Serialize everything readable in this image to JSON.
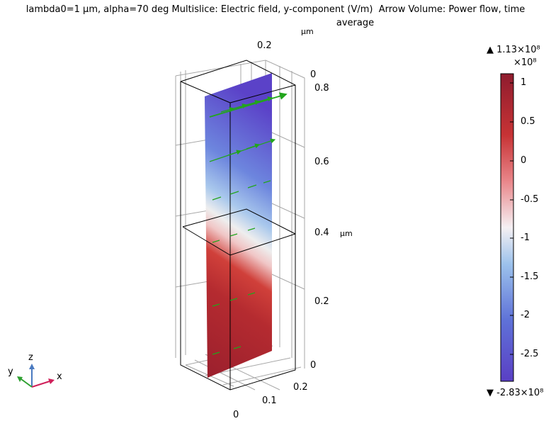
{
  "title": {
    "part1": "lambda0=1 µm, alpha=70 deg",
    "part2": "Multislice: Electric field, y-component (V/m)",
    "part3": "Arrow Volume: Power flow, time",
    "part3b": "average"
  },
  "axes": {
    "unit": "µm",
    "top_x_tick": "0.2",
    "top_x_zero": "0",
    "z_ticks": [
      "0.8",
      "0.6",
      "0.4",
      "0.2",
      "0"
    ],
    "base_ticks": [
      "0.2",
      "0.1",
      "0"
    ]
  },
  "colorbar": {
    "max_label": "▲ 1.13×10⁸",
    "multiplier": "×10⁸",
    "ticks": [
      "1",
      "0.5",
      "0",
      "-0.5",
      "-1",
      "-1.5",
      "-2",
      "-2.5"
    ],
    "min_label": "▼ -2.83×10⁸",
    "colors": [
      "#8f1c2e",
      "#d03a33",
      "#f2b8bd",
      "#f4f4f4",
      "#9cc2ec",
      "#5468d6",
      "#5a3fc4"
    ]
  },
  "triad": {
    "x": "x",
    "y": "y",
    "z": "z"
  }
}
